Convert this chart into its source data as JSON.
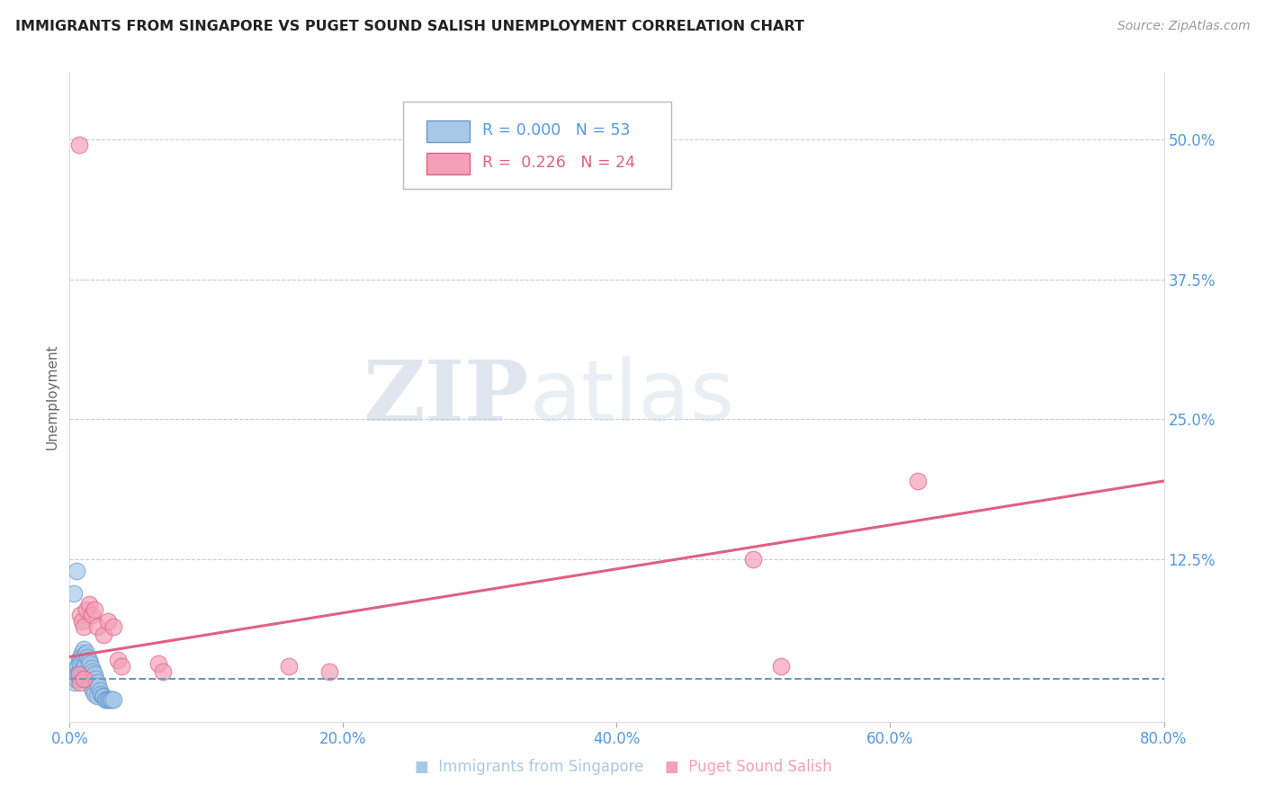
{
  "title": "IMMIGRANTS FROM SINGAPORE VS PUGET SOUND SALISH UNEMPLOYMENT CORRELATION CHART",
  "source": "Source: ZipAtlas.com",
  "ylabel": "Unemployment",
  "xlim": [
    0.0,
    0.8
  ],
  "ylim": [
    -0.02,
    0.56
  ],
  "ytick_labels": [
    "12.5%",
    "25.0%",
    "37.5%",
    "50.0%"
  ],
  "ytick_values": [
    0.125,
    0.25,
    0.375,
    0.5
  ],
  "xtick_labels": [
    "0.0%",
    "20.0%",
    "40.0%",
    "60.0%",
    "80.0%"
  ],
  "xtick_values": [
    0.0,
    0.2,
    0.4,
    0.6,
    0.8
  ],
  "blue_R": "0.000",
  "blue_N": "53",
  "pink_R": "0.226",
  "pink_N": "24",
  "blue_color": "#a8c8e8",
  "pink_color": "#f4a0b8",
  "blue_line_color": "#6699cc",
  "pink_line_color": "#e06080",
  "blue_x": [
    0.002,
    0.003,
    0.003,
    0.004,
    0.004,
    0.005,
    0.005,
    0.006,
    0.006,
    0.007,
    0.007,
    0.008,
    0.008,
    0.008,
    0.009,
    0.009,
    0.009,
    0.01,
    0.01,
    0.01,
    0.011,
    0.011,
    0.012,
    0.012,
    0.013,
    0.013,
    0.014,
    0.014,
    0.015,
    0.015,
    0.016,
    0.016,
    0.017,
    0.017,
    0.018,
    0.018,
    0.019,
    0.02,
    0.02,
    0.021,
    0.022,
    0.023,
    0.024,
    0.025,
    0.026,
    0.027,
    0.028,
    0.029,
    0.03,
    0.031,
    0.032,
    0.003,
    0.005
  ],
  "blue_y": [
    0.025,
    0.022,
    0.018,
    0.02,
    0.015,
    0.028,
    0.018,
    0.03,
    0.022,
    0.035,
    0.025,
    0.038,
    0.032,
    0.02,
    0.042,
    0.035,
    0.025,
    0.045,
    0.038,
    0.028,
    0.04,
    0.03,
    0.042,
    0.025,
    0.038,
    0.022,
    0.035,
    0.018,
    0.032,
    0.015,
    0.028,
    0.01,
    0.025,
    0.008,
    0.022,
    0.005,
    0.018,
    0.015,
    0.003,
    0.012,
    0.008,
    0.005,
    0.003,
    0.002,
    0.0,
    0.0,
    0.0,
    0.0,
    0.0,
    0.0,
    0.0,
    0.095,
    0.115
  ],
  "pink_x": [
    0.007,
    0.008,
    0.009,
    0.01,
    0.012,
    0.014,
    0.016,
    0.018,
    0.02,
    0.025,
    0.028,
    0.032,
    0.035,
    0.038,
    0.065,
    0.068,
    0.16,
    0.19,
    0.5,
    0.52,
    0.62,
    0.007,
    0.008,
    0.01
  ],
  "pink_y": [
    0.495,
    0.075,
    0.07,
    0.065,
    0.08,
    0.085,
    0.075,
    0.08,
    0.065,
    0.058,
    0.07,
    0.065,
    0.035,
    0.03,
    0.032,
    0.025,
    0.03,
    0.025,
    0.125,
    0.03,
    0.195,
    0.022,
    0.015,
    0.018
  ],
  "blue_trend_y": 0.018,
  "pink_trend_x_start": 0.0,
  "pink_trend_x_end": 0.8,
  "pink_trend_y_start": 0.038,
  "pink_trend_y_end": 0.195,
  "watermark_zip": "ZIP",
  "watermark_atlas": "atlas",
  "background_color": "#ffffff",
  "grid_color": "#cccccc",
  "tick_color": "#5599dd",
  "axis_color": "#dddddd"
}
